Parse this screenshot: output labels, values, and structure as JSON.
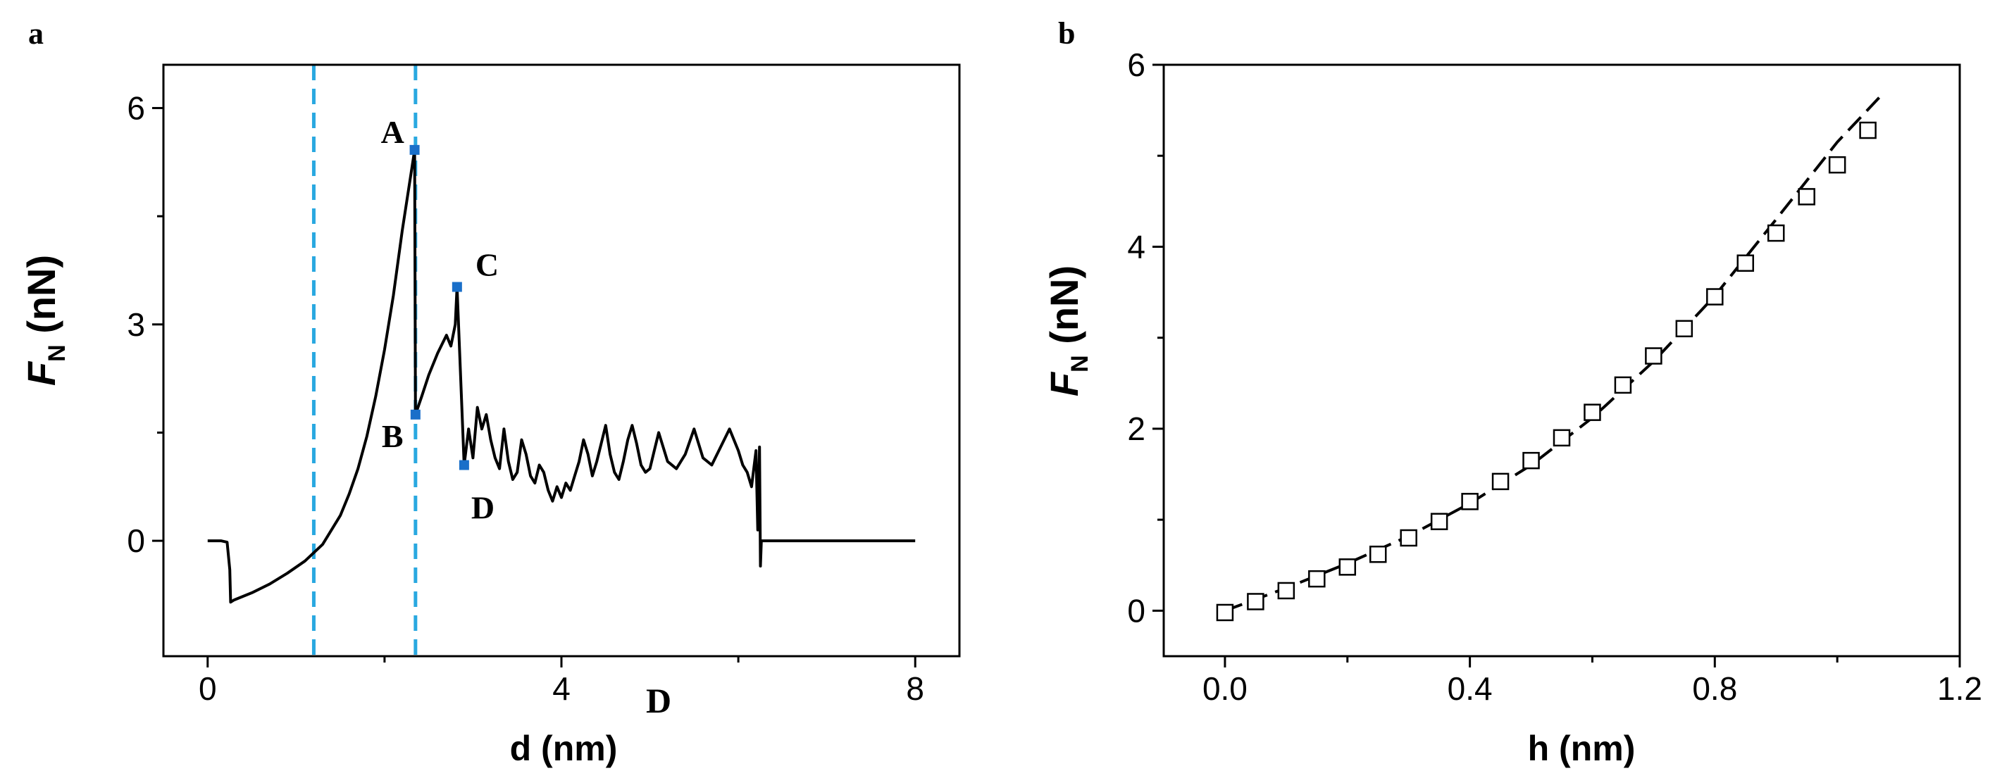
{
  "chart_data": [
    {
      "panel_label": "a",
      "type": "line",
      "xlabel": "d (nm)",
      "ylabel_main": "F",
      "ylabel_sub": "N",
      "ylabel_unit": " (nN)",
      "xlim": [
        -0.5,
        8.5
      ],
      "ylim": [
        -1.6,
        6.6
      ],
      "xticks": [
        0,
        4,
        8
      ],
      "xtick_labels": [
        "0",
        "4",
        "8"
      ],
      "yticks": [
        0,
        3,
        6
      ],
      "ytick_labels": [
        "0",
        "3",
        "6"
      ],
      "grid": false,
      "series": [
        {
          "x": [
            0.0,
            0.15,
            0.22,
            0.25,
            0.26,
            0.3,
            0.5,
            0.7,
            0.9,
            1.1,
            1.3,
            1.5,
            1.6,
            1.7,
            1.8,
            1.9,
            2.0,
            2.1,
            2.2,
            2.3,
            2.34,
            2.35,
            2.42,
            2.5,
            2.6,
            2.7,
            2.75,
            2.8,
            2.82,
            2.9,
            2.95,
            3.0,
            3.05,
            3.1,
            3.15,
            3.2,
            3.25,
            3.3,
            3.35,
            3.4,
            3.45,
            3.5,
            3.55,
            3.6,
            3.65,
            3.7,
            3.75,
            3.8,
            3.85,
            3.9,
            3.95,
            4.0,
            4.05,
            4.1,
            4.15,
            4.2,
            4.25,
            4.3,
            4.35,
            4.4,
            4.45,
            4.5,
            4.55,
            4.6,
            4.65,
            4.7,
            4.75,
            4.8,
            4.85,
            4.9,
            4.95,
            5.0,
            5.05,
            5.1,
            5.15,
            5.2,
            5.3,
            5.4,
            5.5,
            5.6,
            5.7,
            5.8,
            5.9,
            6.0,
            6.05,
            6.1,
            6.15,
            6.2,
            6.22,
            6.24,
            6.25,
            6.26,
            6.27,
            6.3,
            8.0
          ],
          "y": [
            0.0,
            0.0,
            -0.02,
            -0.4,
            -0.85,
            -0.82,
            -0.72,
            -0.6,
            -0.45,
            -0.28,
            -0.05,
            0.35,
            0.65,
            1.0,
            1.45,
            2.0,
            2.65,
            3.4,
            4.3,
            5.1,
            5.42,
            1.75,
            2.0,
            2.3,
            2.6,
            2.85,
            2.7,
            3.0,
            3.52,
            1.05,
            1.55,
            1.15,
            1.85,
            1.55,
            1.75,
            1.4,
            1.15,
            1.0,
            1.55,
            1.1,
            0.85,
            0.95,
            1.4,
            1.2,
            0.9,
            0.8,
            1.05,
            0.95,
            0.7,
            0.55,
            0.75,
            0.6,
            0.8,
            0.7,
            0.9,
            1.1,
            1.4,
            1.2,
            0.9,
            1.1,
            1.35,
            1.6,
            1.2,
            0.95,
            0.85,
            1.1,
            1.4,
            1.6,
            1.35,
            1.05,
            0.95,
            1.0,
            1.25,
            1.5,
            1.3,
            1.1,
            1.0,
            1.2,
            1.55,
            1.15,
            1.05,
            1.3,
            1.55,
            1.25,
            1.05,
            0.95,
            0.75,
            1.25,
            0.15,
            1.3,
            -0.35,
            0.0,
            0.0,
            0.0,
            0.0
          ]
        }
      ],
      "vlines": [
        1.2,
        2.35
      ],
      "vline_color": "#29a8e0",
      "marker_color": "#1a6fc9",
      "line_color": "#000000",
      "points": [
        {
          "label": "A",
          "x": 2.34,
          "y": 5.42
        },
        {
          "label": "B",
          "x": 2.35,
          "y": 1.75
        },
        {
          "label": "C",
          "x": 2.82,
          "y": 3.52
        },
        {
          "label": "D",
          "x": 2.9,
          "y": 1.05
        }
      ],
      "stray_text": "D"
    },
    {
      "panel_label": "b",
      "type": "scatter",
      "xlabel": "h (nm)",
      "ylabel_main": "F",
      "ylabel_sub": "N",
      "ylabel_unit": " (nN)",
      "xlim": [
        -0.1,
        1.2
      ],
      "ylim": [
        -0.5,
        6.0
      ],
      "xticks": [
        0.0,
        0.4,
        0.8,
        1.2
      ],
      "xtick_labels": [
        "0.0",
        "0.4",
        "0.8",
        "1.2"
      ],
      "yticks": [
        0,
        2,
        4,
        6
      ],
      "ytick_labels": [
        "0",
        "2",
        "4",
        "6"
      ],
      "grid": false,
      "series": [
        {
          "x": [
            0.0,
            0.05,
            0.1,
            0.15,
            0.2,
            0.25,
            0.3,
            0.35,
            0.4,
            0.45,
            0.5,
            0.55,
            0.6,
            0.65,
            0.7,
            0.75,
            0.8,
            0.85,
            0.9,
            0.95,
            1.0,
            1.05
          ],
          "y": [
            -0.02,
            0.1,
            0.22,
            0.35,
            0.48,
            0.62,
            0.8,
            0.98,
            1.2,
            1.42,
            1.65,
            1.9,
            2.18,
            2.48,
            2.8,
            3.1,
            3.45,
            3.82,
            4.15,
            4.55,
            4.9,
            5.28
          ]
        }
      ],
      "fit_line": {
        "style": "dashed",
        "x": [
          0.0,
          0.1,
          0.2,
          0.3,
          0.4,
          0.5,
          0.6,
          0.7,
          0.8,
          0.9,
          1.0,
          1.07
        ],
        "y": [
          0.0,
          0.25,
          0.52,
          0.82,
          1.18,
          1.6,
          2.12,
          2.74,
          3.46,
          4.3,
          5.15,
          5.65
        ]
      },
      "marker_color": "#000000"
    }
  ]
}
